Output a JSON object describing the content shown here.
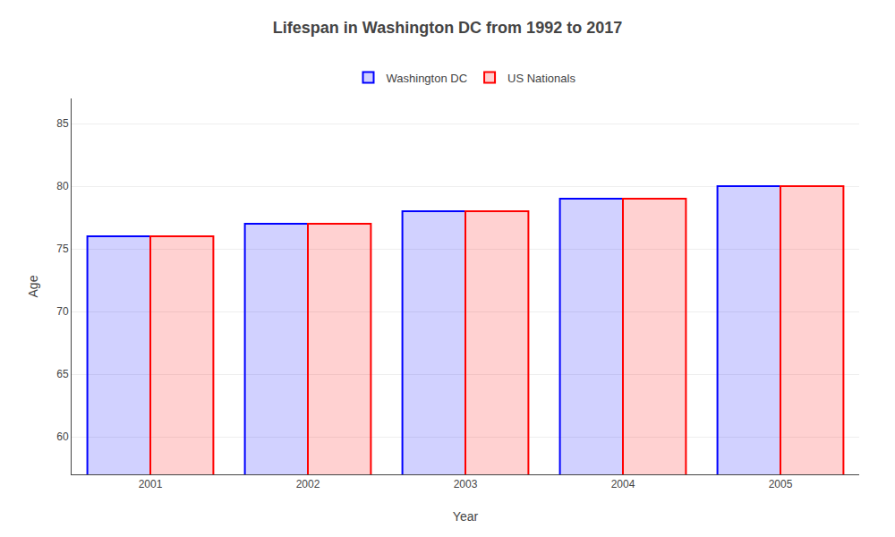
{
  "chart_data": {
    "type": "bar",
    "title": "Lifespan in Washington DC from 1992 to 2017",
    "x_label": "Year",
    "y_label": "Age",
    "categories": [
      "2001",
      "2002",
      "2003",
      "2004",
      "2005"
    ],
    "series": [
      {
        "name": "Washington DC",
        "color": "#0000ff",
        "values": [
          76,
          77,
          78,
          79,
          80
        ]
      },
      {
        "name": "US Nationals",
        "color": "#ff0000",
        "values": [
          76,
          77,
          78,
          79,
          80
        ]
      }
    ],
    "ylim": [
      57,
      87
    ],
    "yticks": [
      60,
      65,
      70,
      75,
      80,
      85
    ],
    "grid": true,
    "legend": "top"
  }
}
